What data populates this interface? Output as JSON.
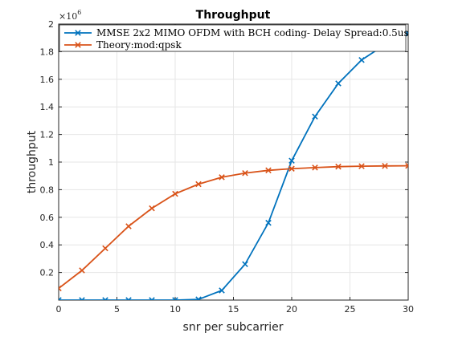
{
  "chart_data": {
    "type": "line",
    "title": "Throughput",
    "xlabel": "snr per subcarrier",
    "ylabel": "throughput",
    "y_exponent_label": "×10",
    "y_exponent_power": "6",
    "xlim": [
      0,
      30
    ],
    "ylim": [
      0,
      2000000
    ],
    "x_ticks": [
      0,
      5,
      10,
      15,
      20,
      25,
      30
    ],
    "x_tick_labels": [
      "0",
      "5",
      "10",
      "15",
      "20",
      "25",
      "30"
    ],
    "y_ticks": [
      200000,
      400000,
      600000,
      800000,
      1000000,
      1200000,
      1400000,
      1600000,
      1800000,
      2000000
    ],
    "y_tick_labels": [
      "0.2",
      "0.4",
      "0.6",
      "0.8",
      "1",
      "1.2",
      "1.4",
      "1.6",
      "1.8",
      "2"
    ],
    "grid": true,
    "legend_position": "top",
    "x": [
      0,
      2,
      4,
      6,
      8,
      10,
      12,
      14,
      16,
      18,
      20,
      22,
      24,
      26,
      28,
      30
    ],
    "series": [
      {
        "name": "MMSE 2x2 MIMO OFDM with BCH coding- Delay Spread:0.5us",
        "color": "#0072BD",
        "marker": "x",
        "values": [
          0,
          0,
          0,
          0,
          0,
          0,
          5000,
          70000,
          260000,
          560000,
          1010000,
          1330000,
          1570000,
          1740000,
          1850000,
          1930000
        ]
      },
      {
        "name": "Theory:mod:qpsk",
        "color": "#D95319",
        "marker": "x",
        "values": [
          85000,
          215000,
          375000,
          535000,
          665000,
          770000,
          840000,
          890000,
          920000,
          940000,
          952000,
          960000,
          967000,
          970000,
          972000,
          973000
        ]
      }
    ]
  }
}
